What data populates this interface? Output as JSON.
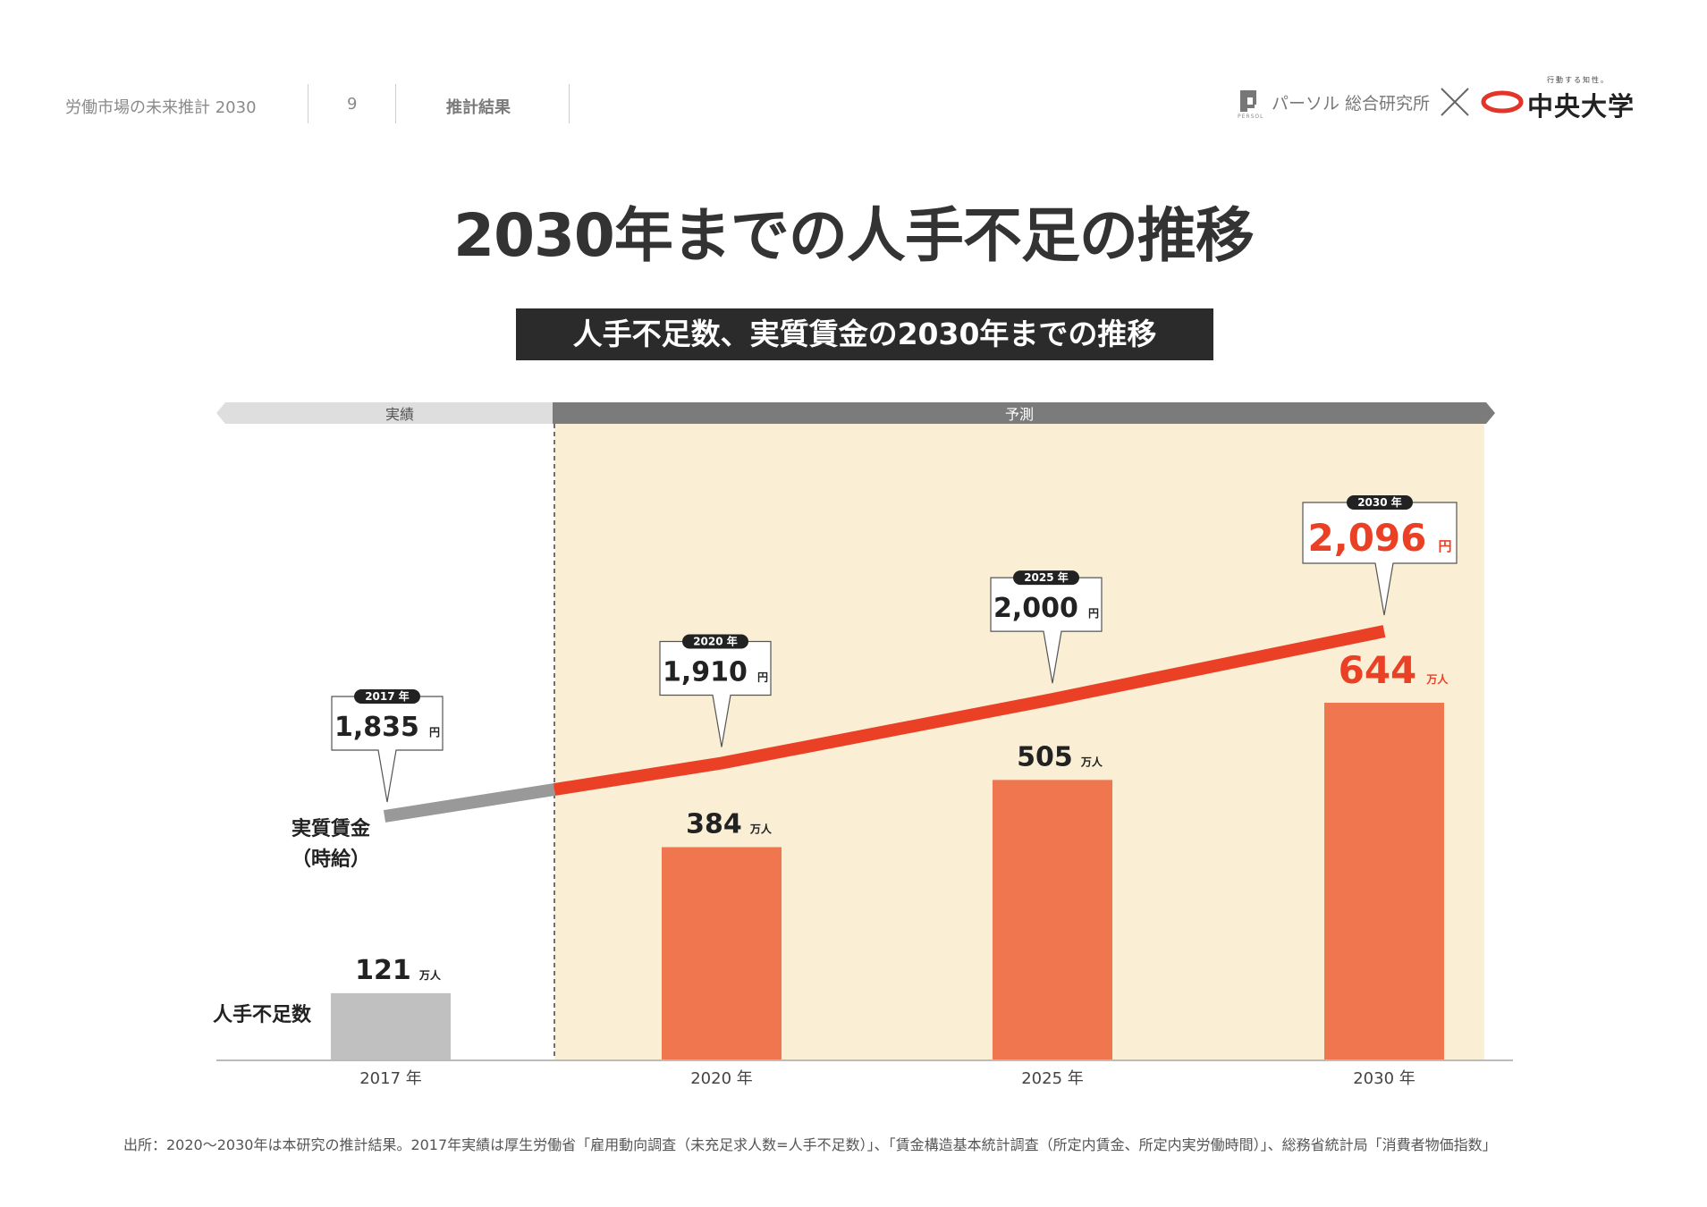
{
  "header": {
    "report_title": "労働市場の未来推計 2030",
    "page_number": "9",
    "section": "推計結果",
    "logo_brand": "パーソル 総合研究所",
    "logo_partner": "中央大学",
    "logo_partner_tagline": "行動する知性。",
    "logo_persol_small": "PERSOL"
  },
  "title": "2030年までの人手不足の推移",
  "subtitle": "人手不足数、実質賃金の2030年までの推移",
  "chart_data": {
    "type": "bar+line",
    "phases": {
      "actual": "実績",
      "forecast": "予測"
    },
    "categories": [
      "2017 年",
      "2020 年",
      "2025 年",
      "2030 年"
    ],
    "years": [
      2017,
      2020,
      2025,
      2030
    ],
    "bar_series": {
      "name": "人手不足数",
      "unit": "万人",
      "values": [
        121,
        384,
        505,
        644
      ],
      "labels": [
        "121",
        "384",
        "505",
        "644"
      ]
    },
    "line_series": {
      "name": "実質賃金",
      "name_sub": "（時給）",
      "unit": "円",
      "values": [
        1835,
        1910,
        2000,
        2096
      ],
      "labels": [
        "1,835",
        "1,910",
        "2,000",
        "2,096"
      ],
      "callout_years": [
        "2017 年",
        "2020 年",
        "2025 年",
        "2030 年"
      ]
    },
    "colors": {
      "actual_bar": "#c0c0c1",
      "forecast_bar": "#f07650",
      "actual_line": "#999999",
      "forecast_line": "#ea4126",
      "forecast_bg": "#faefd4",
      "highlight_text": "#ea4126"
    }
  },
  "source": "出所：2020～2030年は本研究の推計結果。2017年実績は厚生労働省「雇用動向調査（未充足求人数=人手不足数）」、「賃金構造基本統計調査（所定内賃金、所定内実労働時間）」、総務省統計局「消費者物価指数」"
}
